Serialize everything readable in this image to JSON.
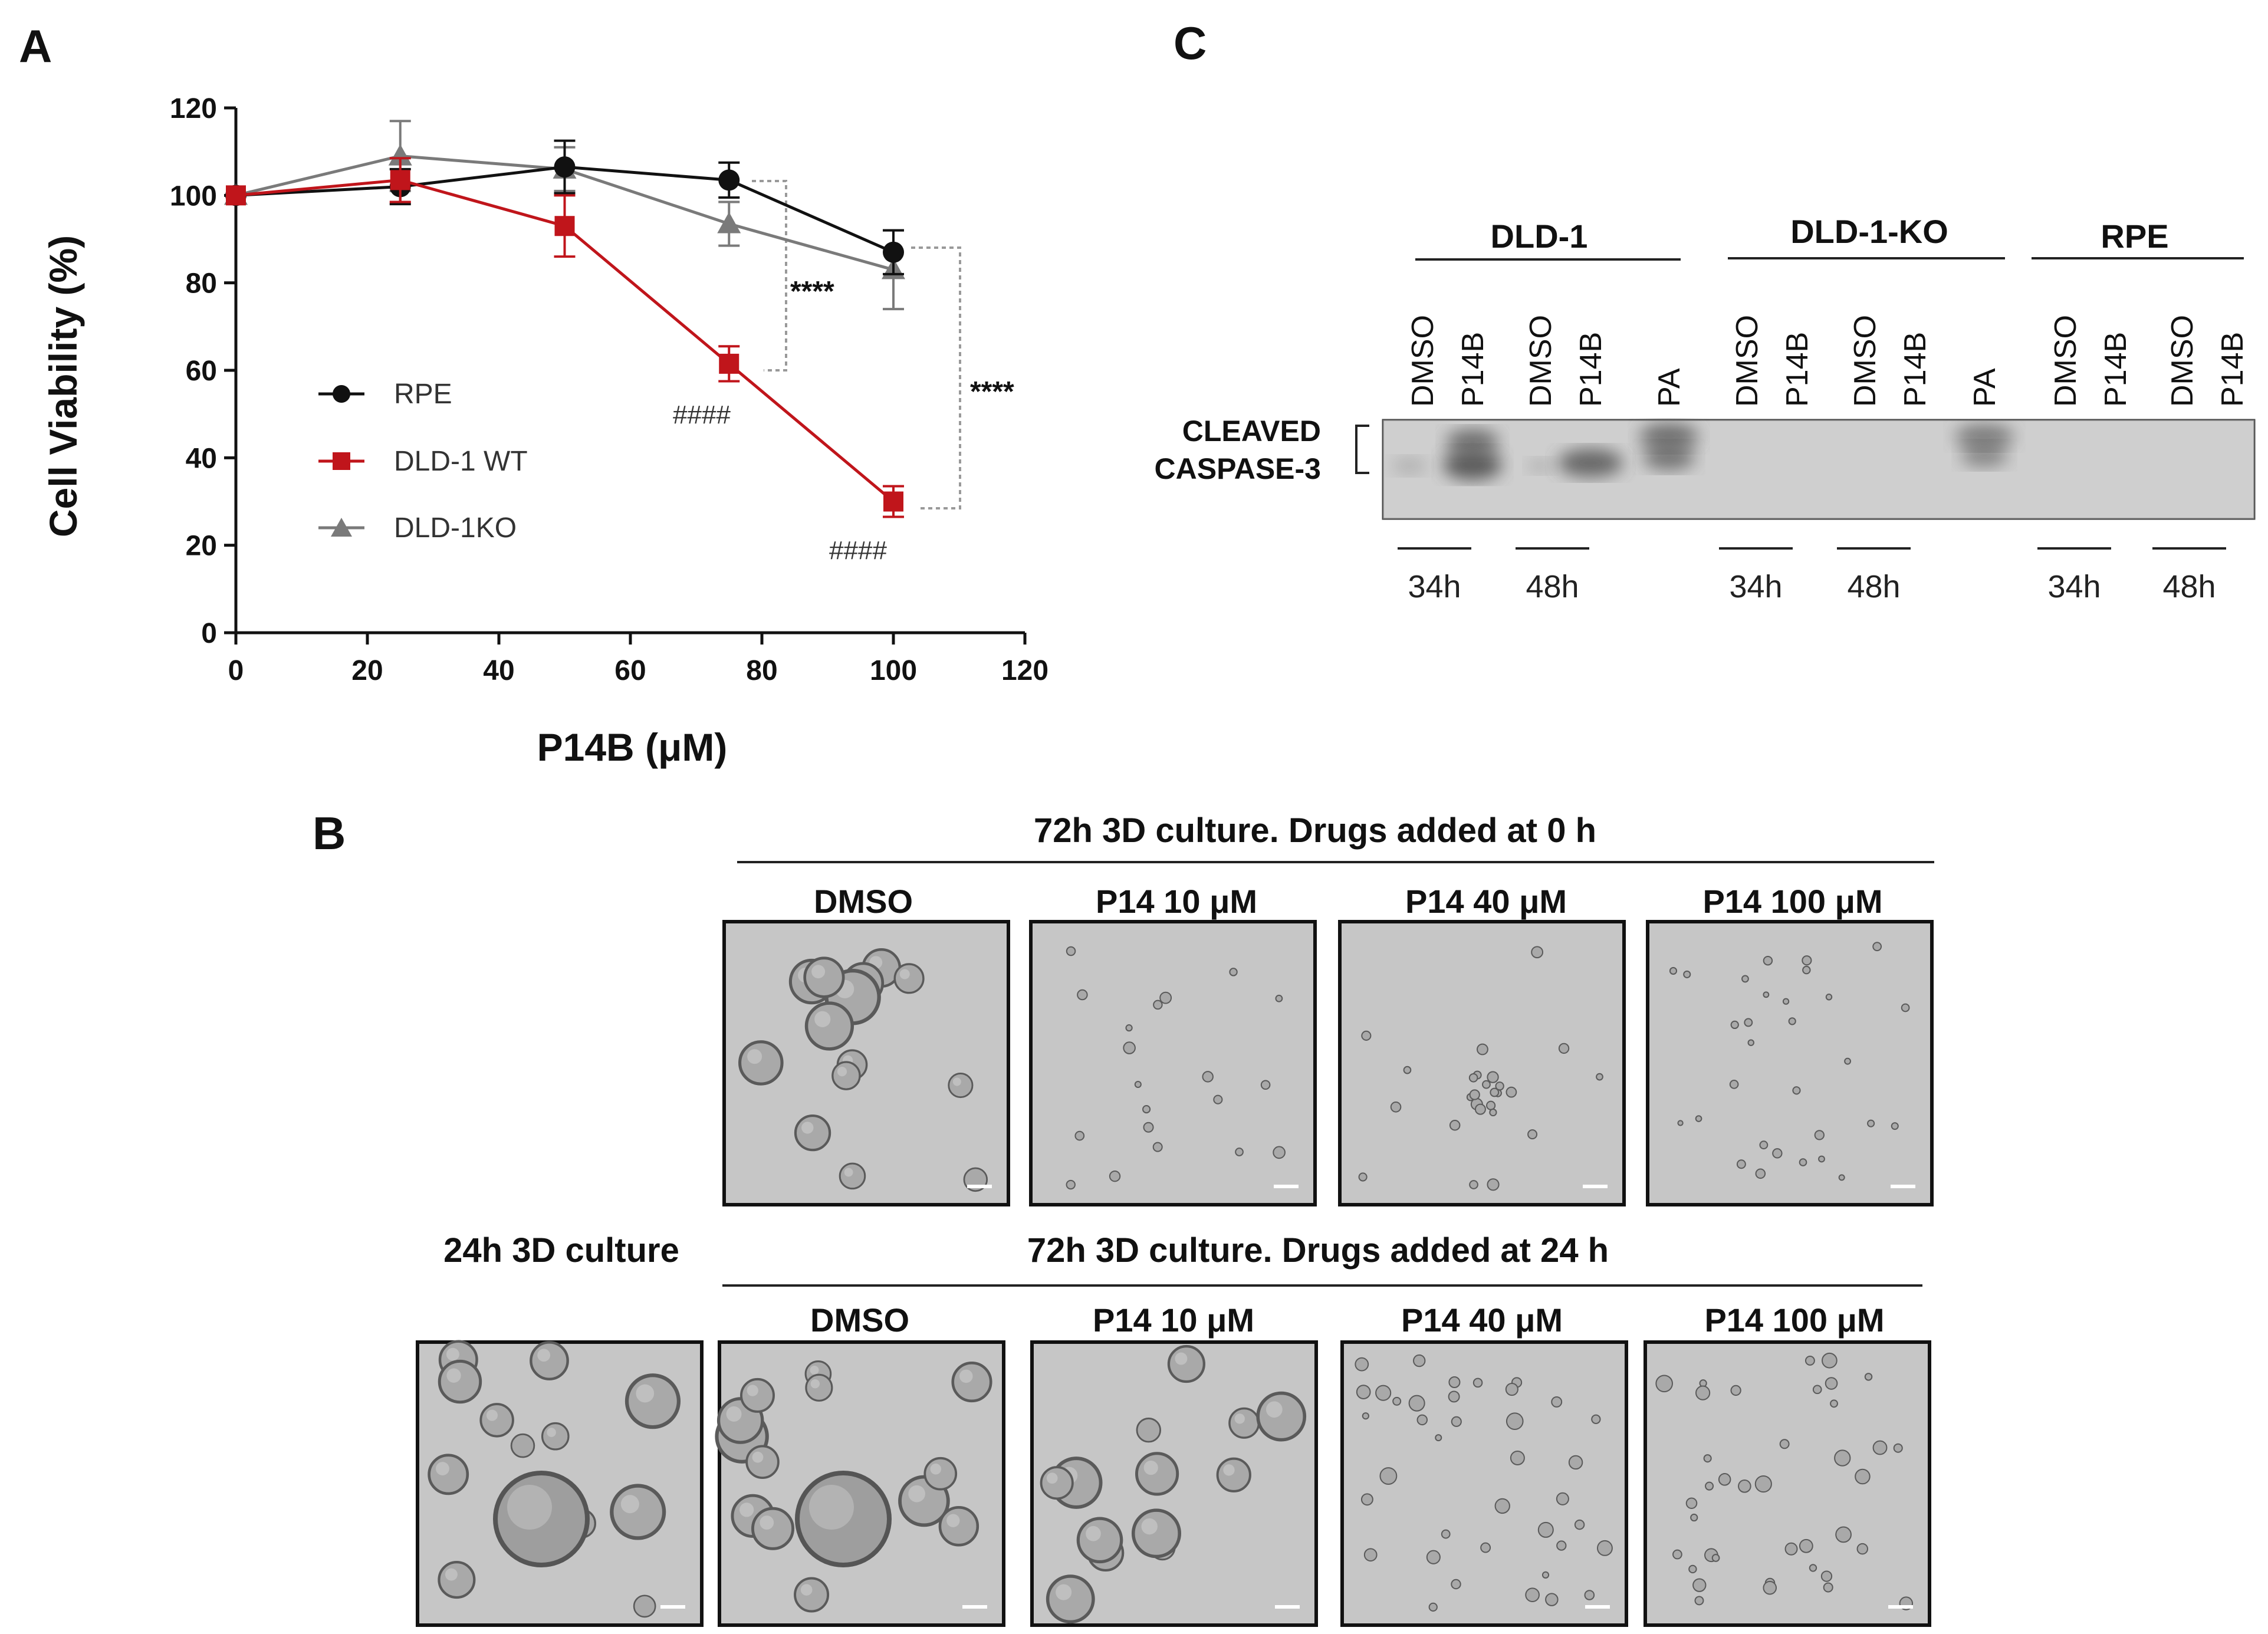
{
  "panel_labels": {
    "a": "A",
    "b": "B",
    "c": "C"
  },
  "chart_data": {
    "type": "line",
    "xlabel": "P14B (μM)",
    "ylabel": "Cell Viability (%)",
    "xlim": [
      0,
      120
    ],
    "ylim": [
      0,
      120
    ],
    "xticks": [
      "0",
      "20",
      "40",
      "60",
      "80",
      "100",
      "120"
    ],
    "yticks": [
      "0",
      "20",
      "40",
      "60",
      "80",
      "100",
      "120"
    ],
    "legend_position": "center-left",
    "grid": false,
    "x": [
      0,
      25,
      50,
      75,
      100
    ],
    "series": [
      {
        "name": "RPE",
        "color": "#111111",
        "marker": "circle",
        "values": [
          100,
          102,
          106.5,
          103.5,
          87
        ],
        "errors": [
          0,
          4,
          6,
          4,
          5
        ]
      },
      {
        "name": "DLD-1 WT",
        "color": "#c0151b",
        "marker": "square",
        "values": [
          100,
          103.5,
          93,
          61.5,
          30
        ],
        "errors": [
          0,
          5,
          7,
          4,
          3.5
        ]
      },
      {
        "name": "DLD-1KO",
        "color": "#7a7a7a",
        "marker": "triangle",
        "values": [
          100,
          109,
          106,
          93.5,
          83
        ],
        "errors": [
          0,
          8,
          5,
          5,
          9
        ]
      }
    ],
    "annotations": {
      "sig_75": "****",
      "sig_100": "****",
      "hash_75": "####",
      "hash_100": "####"
    }
  },
  "blot": {
    "groups": [
      "DLD-1",
      "DLD-1-KO",
      "RPE"
    ],
    "lanes": [
      "DMSO",
      "P14B",
      "DMSO",
      "P14B",
      "PA",
      "DMSO",
      "P14B",
      "DMSO",
      "P14B",
      "PA",
      "DMSO",
      "P14B",
      "DMSO",
      "P14B"
    ],
    "band_label_line1": "CLEAVED",
    "band_label_line2": "CASPASE-3",
    "timepoints": [
      "34h",
      "48h",
      "34h",
      "48h",
      "34h",
      "48h"
    ],
    "blot_color": "#d4d4d4",
    "band_color": "#555555"
  },
  "panel_b": {
    "row1_title": "72h 3D culture. Drugs added at 0 h",
    "row1_labels": [
      "DMSO",
      "P14 10 μM",
      "P14 40 μM",
      "P14 100 μM"
    ],
    "row2_side_label": "24h 3D culture",
    "row2_title": "72h 3D culture. Drugs added at 24 h",
    "row2_labels": [
      "DMSO",
      "P14 10 μM",
      "P14 40 μM",
      "P14 100 μM"
    ],
    "micrograph_bg": "#c6c6c6"
  }
}
